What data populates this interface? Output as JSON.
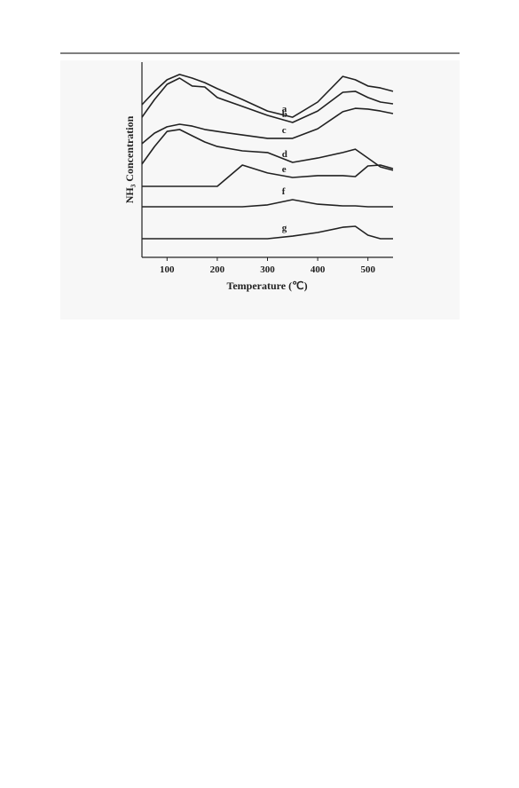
{
  "chart_data": {
    "type": "line",
    "x_label": "Temperature (℃)",
    "y_label": "NH₃ Concentration",
    "x": [
      50,
      75,
      100,
      125,
      150,
      175,
      200,
      250,
      300,
      350,
      400,
      450,
      475,
      500,
      525,
      550
    ],
    "series": [
      {
        "name": "a",
        "color": "#222222",
        "values": [
          79.8,
          86.9,
          93.0,
          95.8,
          93.9,
          91.5,
          88.3,
          82.6,
          76.5,
          73.2,
          81.2,
          94.8,
          93.0,
          89.7,
          88.7,
          86.9
        ]
      },
      {
        "name": "b",
        "color": "#222222",
        "values": [
          73.2,
          82.6,
          90.6,
          93.9,
          89.7,
          89.2,
          83.6,
          78.9,
          74.2,
          70.4,
          76.5,
          86.4,
          86.9,
          83.6,
          81.2,
          80.3
        ]
      },
      {
        "name": "c",
        "color": "#222222",
        "values": [
          59.2,
          64.8,
          68.1,
          69.5,
          68.5,
          66.7,
          65.7,
          63.8,
          62.0,
          62.0,
          67.1,
          76.1,
          77.9,
          77.5,
          76.5,
          75.1
        ]
      },
      {
        "name": "d",
        "color": "#222222",
        "values": [
          48.4,
          57.7,
          65.7,
          66.7,
          63.4,
          60.1,
          57.7,
          55.4,
          54.5,
          49.3,
          51.6,
          54.5,
          56.3,
          51.6,
          46.9,
          45.1
        ]
      },
      {
        "name": "e",
        "color": "#222222",
        "values": [
          36.6,
          36.6,
          36.6,
          36.6,
          36.6,
          36.6,
          36.6,
          47.9,
          43.7,
          41.3,
          42.3,
          42.3,
          41.8,
          47.4,
          47.9,
          46.0
        ]
      },
      {
        "name": "f",
        "color": "#222222",
        "values": [
          25.8,
          25.8,
          25.8,
          25.8,
          25.8,
          25.8,
          25.8,
          25.8,
          26.8,
          29.6,
          27.2,
          26.3,
          26.3,
          25.8,
          25.8,
          25.8
        ]
      },
      {
        "name": "g",
        "color": "#222222",
        "values": [
          8.9,
          8.9,
          8.9,
          8.9,
          8.9,
          8.9,
          8.9,
          8.9,
          8.9,
          10.3,
          12.2,
          15.0,
          15.5,
          10.8,
          8.9,
          8.9
        ]
      }
    ],
    "xlim": [
      50,
      550
    ],
    "xticks": [
      100,
      200,
      300,
      400,
      500
    ],
    "ylim": [
      0,
      100
    ]
  }
}
